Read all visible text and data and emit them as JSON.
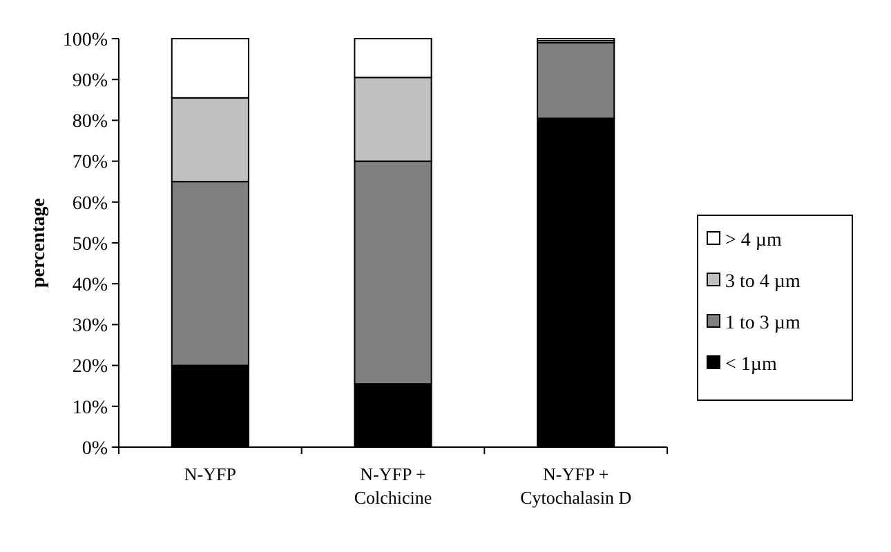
{
  "chart_data": {
    "type": "bar",
    "stacked": true,
    "ylabel": "percentage",
    "categories": [
      "N-YFP",
      "N-YFP + Colchicine",
      "N-YFP + Cytochalasin D"
    ],
    "series": [
      {
        "name": "< 1µm",
        "color": "#000000",
        "values": [
          20,
          15.5,
          80.5
        ]
      },
      {
        "name": "1 to 3 µm",
        "color": "#808080",
        "values": [
          45,
          54.5,
          18.5
        ]
      },
      {
        "name": "3 to 4 µm",
        "color": "#c0c0c0",
        "values": [
          20.5,
          20.5,
          0.5
        ]
      },
      {
        "name": "> 4 µm",
        "color": "#ffffff",
        "values": [
          14.5,
          9.5,
          0.5
        ]
      }
    ],
    "ylim": [
      0,
      100
    ],
    "yticks": [
      {
        "value": 0,
        "label": "0%"
      },
      {
        "value": 10,
        "label": "10%"
      },
      {
        "value": 20,
        "label": "20%"
      },
      {
        "value": 30,
        "label": "30%"
      },
      {
        "value": 40,
        "label": "40%"
      },
      {
        "value": 50,
        "label": "50%"
      },
      {
        "value": 60,
        "label": "60%"
      },
      {
        "value": 70,
        "label": "70%"
      },
      {
        "value": 80,
        "label": "80%"
      },
      {
        "value": 90,
        "label": "90%"
      },
      {
        "value": 100,
        "label": "100%"
      }
    ],
    "legend": "right"
  }
}
